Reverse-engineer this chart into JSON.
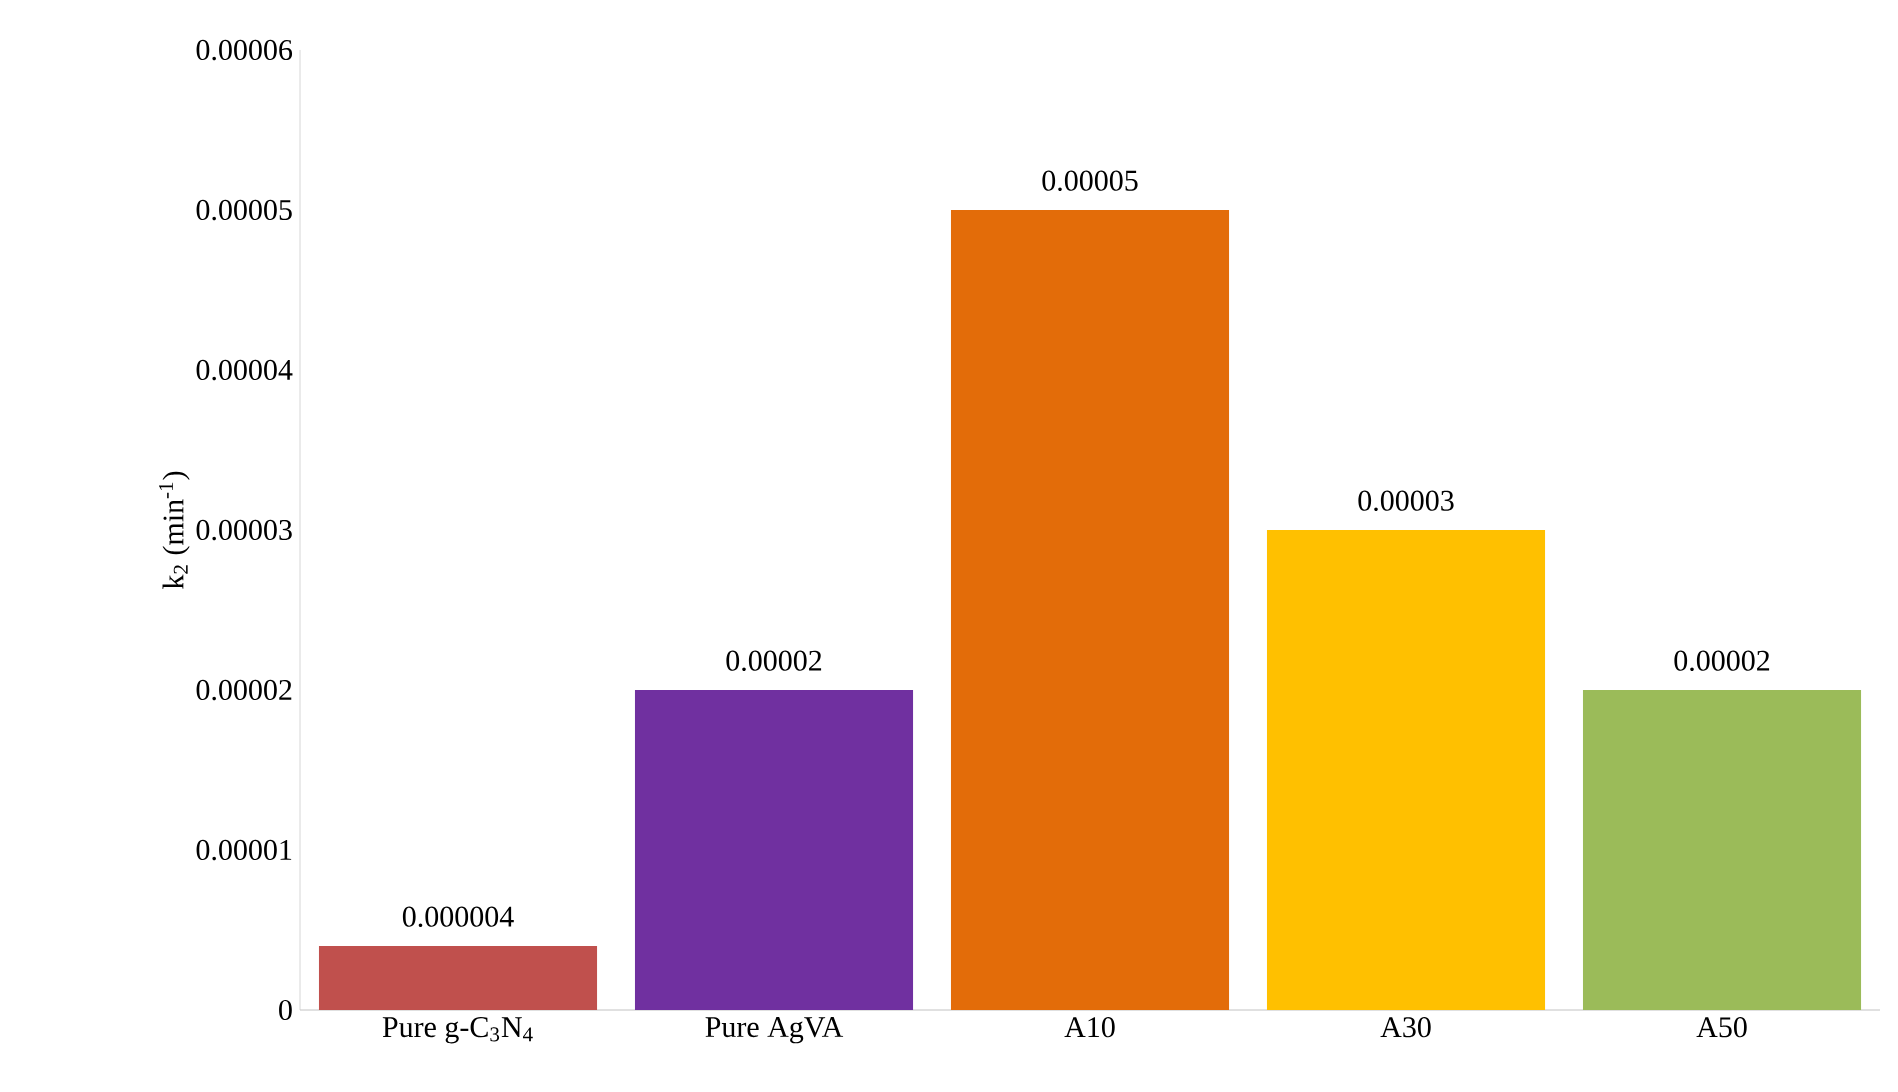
{
  "chart_data": {
    "type": "bar",
    "ylabel": "k$_{2}$ (min$^{-1}$)",
    "categories": [
      "Pure g-C$_{3}$N$_{4}$",
      "Pure AgVA",
      "A10",
      "A30",
      "A50"
    ],
    "values": [
      4e-06,
      2e-05,
      5e-05,
      3e-05,
      2e-05
    ],
    "value_labels": [
      "0.000004",
      "0.00002",
      "0.00005",
      "0.00003",
      "0.00002"
    ],
    "colors": [
      "#c0504d",
      "#7030a0",
      "#e36c09",
      "#ffc000",
      "#9bbb59"
    ],
    "ylim": [
      0,
      6e-05
    ],
    "yticks": [
      {
        "value": 0,
        "label": "0"
      },
      {
        "value": 1e-05,
        "label": "0.00001"
      },
      {
        "value": 2e-05,
        "label": "0.00002"
      },
      {
        "value": 3e-05,
        "label": "0.00003"
      },
      {
        "value": 4e-05,
        "label": "0.00004"
      },
      {
        "value": 5e-05,
        "label": "0.00005"
      },
      {
        "value": 6e-05,
        "label": "0.00006"
      }
    ],
    "grid": false
  }
}
